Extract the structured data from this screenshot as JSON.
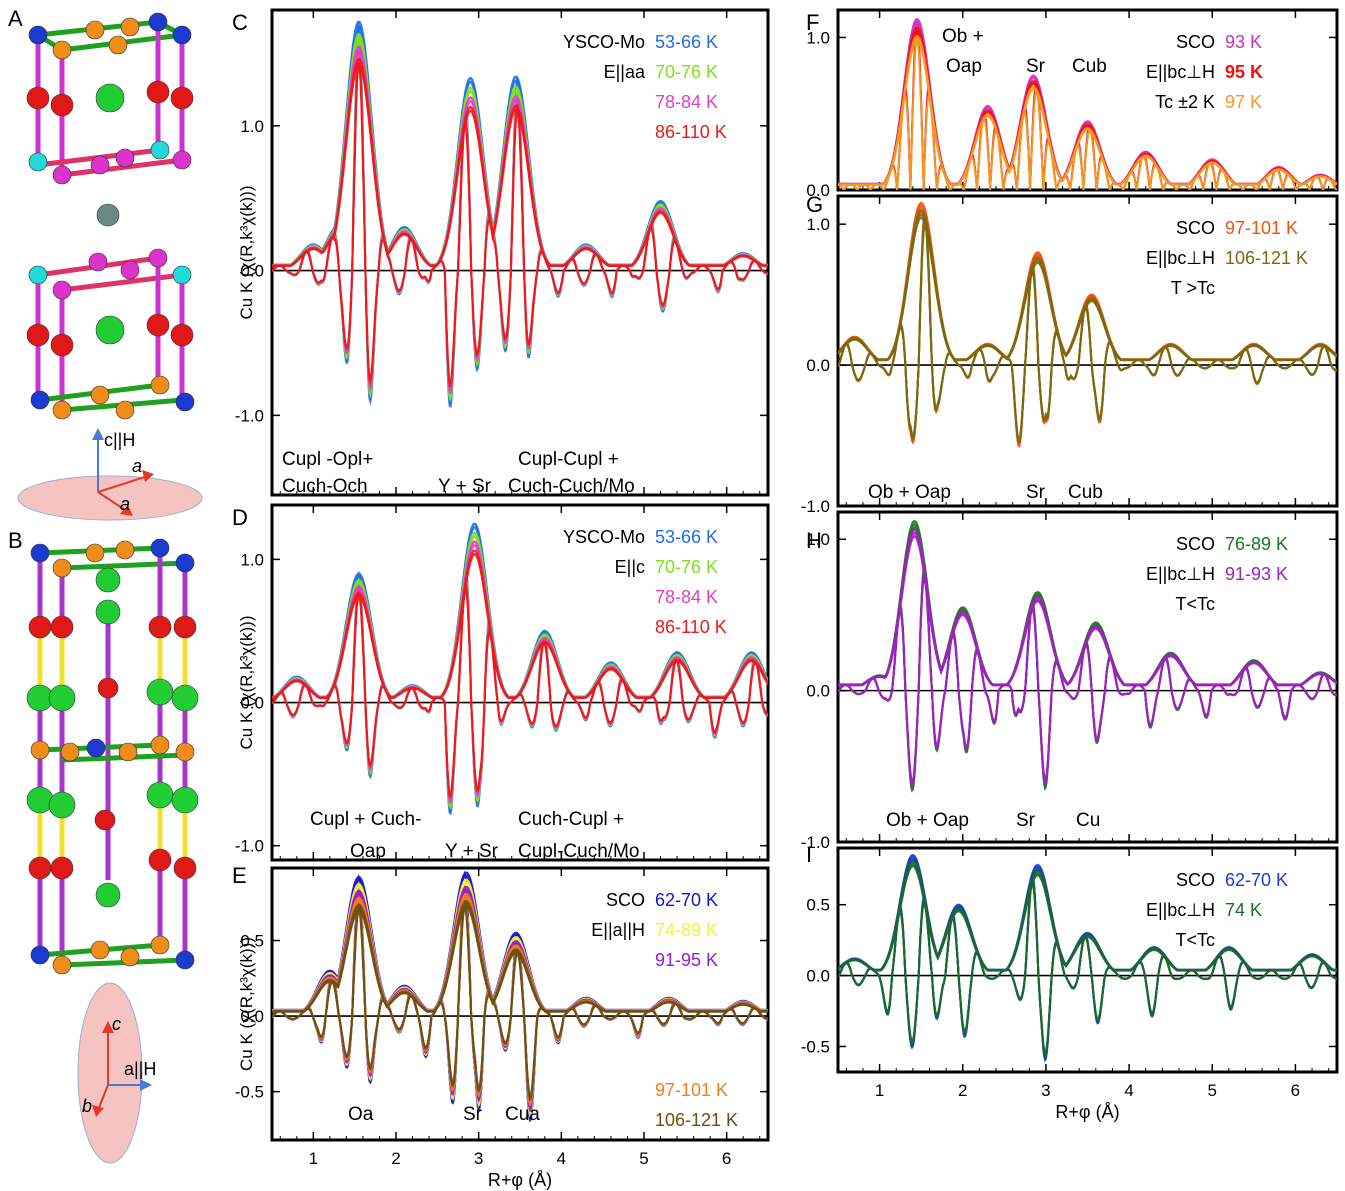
{
  "figure_labels": [
    "A",
    "B",
    "C",
    "D",
    "E",
    "F",
    "G",
    "H",
    "I"
  ],
  "crystal": {
    "A_axis_c": "c||H",
    "A_axis_a1": "a",
    "A_axis_a2": "a",
    "B_axis_c": "c",
    "B_axis_a": "a||H",
    "B_axis_b": "b"
  },
  "colors": {
    "c53": "#1f6fe8",
    "c70": "#7fe01c",
    "c78": "#e040c8",
    "c86": "#f01818",
    "c62": "#1515d0",
    "c74": "#f2f23a",
    "c91": "#9a1ad0",
    "c97": "#f08018",
    "c106": "#6e5010",
    "c93": "#d030c0",
    "c95": "#f01010",
    "c97b": "#f59a20",
    "c97r": "#f05010",
    "c106r": "#7a6a10",
    "c121": "#7a1010",
    "c76": "#1a7a1a",
    "c89": "#f2f23a",
    "c91h": "#a020c0",
    "c62i": "#1a3ad0",
    "c70i": "#20b8f0",
    "c74i": "#1a6a2a"
  },
  "chart_data": [
    {
      "panel": "C",
      "type": "line",
      "ylabel": "Cu K (χ(R,k³χ(k)))",
      "xlabel": "",
      "xlim": [
        0.5,
        6.5
      ],
      "ylim": [
        -1.55,
        1.8
      ],
      "yticks": [
        -1.0,
        0.0,
        1.0
      ],
      "xticks": [
        1,
        2,
        3,
        4,
        5,
        6
      ],
      "show_xtick_labels": false,
      "legend_title": [
        "YSCO-Mo",
        "E||aa"
      ],
      "series": [
        {
          "name": "53-66 K",
          "color_key": "c53"
        },
        {
          "name": "70-76 K",
          "color_key": "c70"
        },
        {
          "name": "78-84 K",
          "color_key": "c78"
        },
        {
          "name": "86-110 K",
          "color_key": "c86"
        }
      ],
      "annotations": [
        "Cupl -Opl+",
        "Cuch-Och",
        "Y + Sr",
        "Cupl-Cupl +",
        "Cuch-Cuch/Mo"
      ]
    },
    {
      "panel": "D",
      "type": "line",
      "ylabel": "Cu K (χ(R,k³χ(k)))",
      "xlabel": "",
      "xlim": [
        0.5,
        6.5
      ],
      "ylim": [
        -1.1,
        1.38
      ],
      "yticks": [
        -1.0,
        0.0,
        1.0
      ],
      "xticks": [
        1,
        2,
        3,
        4,
        5,
        6
      ],
      "show_xtick_labels": false,
      "legend_title": [
        "YSCO-Mo",
        "E||c"
      ],
      "series": [
        {
          "name": "53-66 K",
          "color_key": "c53"
        },
        {
          "name": "70-76 K",
          "color_key": "c70"
        },
        {
          "name": "78-84 K",
          "color_key": "c78"
        },
        {
          "name": "86-110 K",
          "color_key": "c86"
        }
      ],
      "annotations": [
        "Cupl + Cuch-",
        "Oap",
        "Y + Sr",
        "Cuch-Cupl +",
        "Cupl-Cuch/Mo"
      ]
    },
    {
      "panel": "E",
      "type": "line",
      "ylabel": "Cu K (χ(R,k³χ(k)))",
      "xlabel": "R+φ (Å)",
      "xlim": [
        0.5,
        6.5
      ],
      "ylim": [
        -0.82,
        0.98
      ],
      "yticks": [
        -0.5,
        0.0,
        0.5
      ],
      "xticks": [
        1,
        2,
        3,
        4,
        5,
        6
      ],
      "show_xtick_labels": true,
      "legend_title": [
        "SCO",
        "E||a||H"
      ],
      "series": [
        {
          "name": "62-70 K",
          "color_key": "c62"
        },
        {
          "name": "74-89 K",
          "color_key": "c74"
        },
        {
          "name": "91-95 K",
          "color_key": "c91"
        },
        {
          "name": "97-101 K",
          "color_key": "c97"
        },
        {
          "name": "106-121 K",
          "color_key": "c106"
        }
      ],
      "annotations": [
        "Oa",
        "Sr",
        "Cua"
      ]
    },
    {
      "panel": "F",
      "type": "line",
      "xlim": [
        0.5,
        6.5
      ],
      "ylim": [
        0.0,
        1.18
      ],
      "yticks": [
        0.0,
        1.0
      ],
      "xticks": [
        1,
        2,
        3,
        4,
        5,
        6
      ],
      "show_xtick_labels": false,
      "legend_title": [
        "SCO",
        "E||bc⊥H",
        "Tc ±2 K"
      ],
      "series": [
        {
          "name": "93 K",
          "color_key": "c93"
        },
        {
          "name": "95 K",
          "color_key": "c95"
        },
        {
          "name": "97 K",
          "color_key": "c97b"
        }
      ],
      "annotations": [
        "Ob +",
        "Oap",
        "Sr",
        "Cub"
      ]
    },
    {
      "panel": "G",
      "type": "line",
      "xlim": [
        0.5,
        6.5
      ],
      "ylim": [
        -1.0,
        1.2
      ],
      "yticks": [
        -1.0,
        0.0,
        1.0
      ],
      "xticks": [
        1,
        2,
        3,
        4,
        5,
        6
      ],
      "show_xtick_labels": false,
      "legend_title": [
        "SCO",
        "E||bc⊥H",
        "T >Tc"
      ],
      "series": [
        {
          "name": "97-101 K",
          "color_key": "c97r"
        },
        {
          "name": "106-121 K",
          "color_key": "c106r"
        }
      ],
      "annotations": [
        "Ob + Oap",
        "Sr",
        "Cub"
      ]
    },
    {
      "panel": "H",
      "type": "line",
      "xlim": [
        0.5,
        6.5
      ],
      "ylim": [
        -1.0,
        1.18
      ],
      "yticks": [
        -1.0,
        0.0,
        1.0
      ],
      "xticks": [
        1,
        2,
        3,
        4,
        5,
        6
      ],
      "show_xtick_labels": false,
      "legend_title": [
        "SCO",
        "E||bc⊥H",
        "T<Tc"
      ],
      "series": [
        {
          "name": "76-89 K",
          "color_key": "c76"
        },
        {
          "name": "91-93 K",
          "color_key": "c91h"
        }
      ],
      "annotations": [
        "Ob + Oap",
        "Sr",
        "Cu"
      ]
    },
    {
      "panel": "I",
      "type": "line",
      "xlabel": "R+φ (Å)",
      "xlim": [
        0.5,
        6.5
      ],
      "ylim": [
        -0.68,
        0.9
      ],
      "yticks": [
        -0.5,
        0.0,
        0.5
      ],
      "xticks": [
        1,
        2,
        3,
        4,
        5,
        6
      ],
      "show_xtick_labels": true,
      "legend_title": [
        "SCO",
        "E||bc⊥H",
        "T<Tc"
      ],
      "series": [
        {
          "name": "62-70 K",
          "color_key": "c62i"
        },
        {
          "name": "74 K",
          "color_key": "c74i"
        }
      ],
      "annotations": []
    }
  ]
}
